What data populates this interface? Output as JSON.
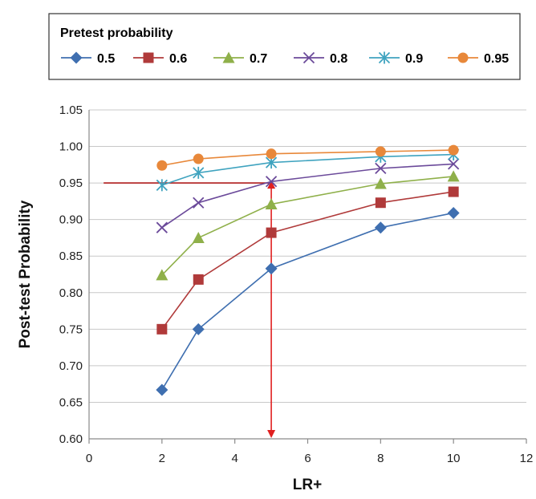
{
  "chart_data": {
    "type": "line",
    "title": "",
    "xlabel": "LR+",
    "ylabel": "Post-test Probability",
    "xlim": [
      0,
      12
    ],
    "ylim": [
      0.6,
      1.05
    ],
    "x_ticks": [
      "0",
      "2",
      "4",
      "6",
      "8",
      "10",
      "12"
    ],
    "y_ticks": [
      "0.60",
      "0.65",
      "0.70",
      "0.75",
      "0.80",
      "0.85",
      "0.90",
      "0.95",
      "1.00",
      "1.05"
    ],
    "grid": "horizontal",
    "legend": {
      "title": "Pretest probability",
      "placement": "top"
    },
    "x": [
      2,
      3,
      5,
      8,
      10
    ],
    "series": [
      {
        "name": "0.5",
        "color": "#3F6FB0",
        "marker": "diamond",
        "values": [
          0.667,
          0.75,
          0.833,
          0.889,
          0.909
        ]
      },
      {
        "name": "0.6",
        "color": "#B03A3A",
        "marker": "square",
        "values": [
          0.75,
          0.818,
          0.882,
          0.923,
          0.938
        ]
      },
      {
        "name": "0.7",
        "color": "#8FB04A",
        "marker": "triangle",
        "values": [
          0.824,
          0.875,
          0.921,
          0.949,
          0.959
        ]
      },
      {
        "name": "0.8",
        "color": "#6B4A9A",
        "marker": "x",
        "values": [
          0.889,
          0.923,
          0.952,
          0.97,
          0.976
        ]
      },
      {
        "name": "0.9",
        "color": "#3FA3BF",
        "marker": "star",
        "values": [
          0.947,
          0.964,
          0.978,
          0.986,
          0.989
        ]
      },
      {
        "name": "0.95",
        "color": "#E8883A",
        "marker": "circle",
        "values": [
          0.974,
          0.983,
          0.99,
          0.993,
          0.995
        ]
      }
    ],
    "annotations": [
      {
        "type": "hline",
        "y": 0.95,
        "x_from": 0.4,
        "x_to": 5,
        "color": "#B01E1E"
      },
      {
        "type": "vline-arrow",
        "x": 5,
        "y_from": 0.95,
        "y_to": 0.6,
        "color": "#E02020"
      }
    ]
  }
}
